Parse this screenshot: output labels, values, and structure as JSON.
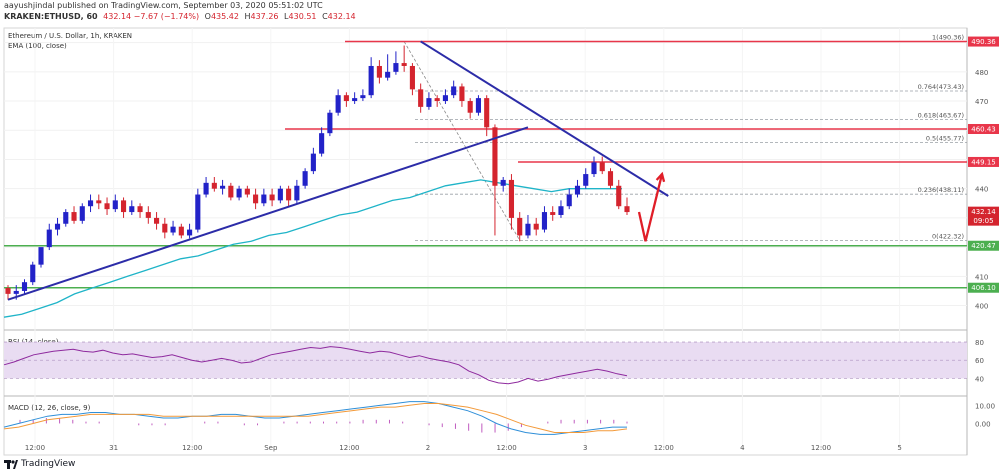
{
  "header": {
    "line1": "aayushjindal published on TradingView.com, September 03, 2020 05:51:02 UTC",
    "symbol": "KRAKEN:ETHUSD, 60",
    "quote": "432.14 −7.67 (−1.74%)",
    "o": "435.42",
    "h": "437.26",
    "l": "430.51",
    "c": "432.14"
  },
  "legend": {
    "instrument": "Ethereum / U.S. Dollar, 1h, KRAKEN",
    "ema": "EMA (100, close)",
    "rsi": "RSI (14, close)",
    "macd": "MACD (12, 26, close, 9)"
  },
  "brand": "TradingView",
  "colors": {
    "up": "#2222c8",
    "down": "#d4242e",
    "ema": "#1fb4c8",
    "resistance": "#e8364a",
    "support": "#4caf50",
    "trend": "#2c2ca8",
    "fib": "#9aa0a6",
    "arrow": "#e01e28",
    "rsi": "#8e2a9e",
    "rsi_band": "#e9dcf2",
    "macd": "#2f8fd8",
    "signal": "#f39a3a"
  },
  "chart_data": {
    "type": "candlestick",
    "y_range": [
      393,
      495
    ],
    "price_axis_ticks": [
      400,
      410,
      420,
      430,
      440,
      450,
      460,
      470,
      480,
      490
    ],
    "time_axis_labels": [
      "12:00",
      "31",
      "12:00",
      "Sep",
      "12:00",
      "2",
      "12:00",
      "3",
      "12:00",
      "4",
      "12:00",
      "5"
    ],
    "candles": [
      [
        406,
        404,
        407,
        402
      ],
      [
        404,
        405,
        407,
        402
      ],
      [
        405,
        408,
        409,
        404
      ],
      [
        408,
        414,
        415,
        407
      ],
      [
        414,
        420,
        416,
        413
      ],
      [
        420,
        426,
        428,
        419
      ],
      [
        426,
        428,
        430,
        424
      ],
      [
        428,
        432,
        433,
        427
      ],
      [
        432,
        429,
        434,
        428
      ],
      [
        429,
        434,
        435,
        428
      ],
      [
        434,
        436,
        438,
        432
      ],
      [
        436,
        435,
        438,
        433
      ],
      [
        435,
        433,
        437,
        431
      ],
      [
        433,
        436,
        438,
        432
      ],
      [
        436,
        432,
        437,
        430
      ],
      [
        432,
        434,
        436,
        431
      ],
      [
        434,
        432,
        435,
        430
      ],
      [
        432,
        430,
        434,
        428
      ],
      [
        430,
        428,
        432,
        426
      ],
      [
        428,
        425,
        430,
        423
      ],
      [
        425,
        427,
        429,
        424
      ],
      [
        427,
        424,
        428,
        423
      ],
      [
        424,
        426,
        428,
        423
      ],
      [
        426,
        438,
        440,
        425
      ],
      [
        438,
        442,
        444,
        437
      ],
      [
        442,
        440,
        444,
        439
      ],
      [
        440,
        441,
        443,
        438
      ],
      [
        441,
        437,
        442,
        436
      ],
      [
        437,
        440,
        441,
        436
      ],
      [
        440,
        438,
        441,
        437
      ],
      [
        438,
        435,
        440,
        433
      ],
      [
        435,
        438,
        440,
        434
      ],
      [
        438,
        436,
        440,
        434
      ],
      [
        436,
        440,
        441,
        435
      ],
      [
        440,
        436,
        441,
        434
      ],
      [
        436,
        441,
        443,
        435
      ],
      [
        441,
        446,
        447,
        440
      ],
      [
        446,
        452,
        454,
        445
      ],
      [
        452,
        459,
        461,
        451
      ],
      [
        459,
        466,
        467,
        458
      ],
      [
        466,
        472,
        474,
        465
      ],
      [
        472,
        470,
        473,
        468
      ],
      [
        470,
        471,
        473,
        469
      ],
      [
        471,
        472,
        474,
        470
      ],
      [
        472,
        482,
        485,
        471
      ],
      [
        482,
        478,
        484,
        476
      ],
      [
        478,
        480,
        486,
        477
      ],
      [
        480,
        483,
        487,
        479
      ],
      [
        483,
        482,
        489,
        480
      ],
      [
        482,
        474,
        483,
        472
      ],
      [
        474,
        468,
        476,
        466
      ],
      [
        468,
        471,
        473,
        467
      ],
      [
        471,
        470,
        472,
        468
      ],
      [
        470,
        472,
        474,
        469
      ],
      [
        472,
        475,
        477,
        471
      ],
      [
        475,
        470,
        476,
        468
      ],
      [
        470,
        466,
        471,
        464
      ],
      [
        466,
        471,
        472,
        465
      ],
      [
        471,
        461,
        472,
        458
      ],
      [
        461,
        441,
        462,
        424
      ],
      [
        441,
        443,
        444,
        439
      ],
      [
        443,
        430,
        445,
        426
      ],
      [
        430,
        424,
        432,
        422
      ],
      [
        424,
        428,
        431,
        423
      ],
      [
        428,
        426,
        430,
        424
      ],
      [
        426,
        432,
        434,
        425
      ],
      [
        432,
        431,
        434,
        429
      ],
      [
        431,
        434,
        436,
        430
      ],
      [
        434,
        438,
        440,
        433
      ],
      [
        438,
        441,
        443,
        437
      ],
      [
        441,
        445,
        447,
        440
      ],
      [
        445,
        449,
        451,
        444
      ],
      [
        449,
        446,
        451,
        445
      ],
      [
        446,
        441,
        447,
        440
      ],
      [
        441,
        434,
        443,
        433
      ],
      [
        434,
        432,
        437,
        431
      ]
    ],
    "ema_100": [
      396,
      397,
      399,
      401,
      404,
      406,
      408,
      410,
      412,
      414,
      416,
      417,
      419,
      421,
      422,
      424,
      425,
      427,
      429,
      431,
      432,
      434,
      436,
      437,
      439,
      441,
      442,
      443,
      442,
      441,
      440,
      439,
      440,
      440,
      440,
      440
    ],
    "horizontal_levels": [
      {
        "price": 490.36,
        "label": "490.36",
        "type": "resistance"
      },
      {
        "price": 460.43,
        "label": "460.43",
        "type": "resistance"
      },
      {
        "price": 449.15,
        "label": "449.15",
        "type": "resistance"
      },
      {
        "price": 420.47,
        "label": "420.47",
        "type": "support"
      },
      {
        "price": 406.1,
        "label": "406.10",
        "type": "support"
      }
    ],
    "fibonacci": [
      {
        "price": 490.36,
        "label": "1(490.36)"
      },
      {
        "price": 473.43,
        "label": "0.764(473.43)"
      },
      {
        "price": 463.67,
        "label": "0.618(463.67)"
      },
      {
        "price": 455.77,
        "label": "0.5(455.77)"
      },
      {
        "price": 438.11,
        "label": "0.236(438.11)"
      },
      {
        "price": 422.32,
        "label": "0(422.32)"
      }
    ],
    "price_tags": [
      {
        "price": 432.14,
        "label": "432.14",
        "sub": "09:05"
      }
    ],
    "rsi_ticks": [
      40,
      60,
      80
    ],
    "rsi_range": [
      25,
      90
    ],
    "rsi": [
      55,
      58,
      62,
      66,
      68,
      70,
      71,
      72,
      70,
      69,
      71,
      68,
      66,
      67,
      65,
      63,
      64,
      66,
      63,
      60,
      58,
      60,
      62,
      60,
      57,
      58,
      62,
      66,
      68,
      70,
      72,
      74,
      73,
      75,
      74,
      72,
      70,
      68,
      70,
      69,
      66,
      63,
      65,
      62,
      60,
      58,
      55,
      48,
      44,
      38,
      35,
      34,
      36,
      40,
      37,
      39,
      42,
      44,
      46,
      48,
      50,
      48,
      45,
      43
    ],
    "macd_ticks": [
      10,
      0
    ],
    "macd_range": [
      -8,
      14
    ],
    "macd": [
      -2,
      0,
      2,
      4,
      5,
      5,
      6,
      6,
      5,
      5,
      4,
      3,
      3,
      4,
      4,
      5,
      5,
      4,
      3,
      3,
      4,
      5,
      6,
      7,
      8,
      9,
      10,
      11,
      12,
      12,
      11,
      9,
      7,
      4,
      0,
      -3,
      -5,
      -6,
      -6,
      -5,
      -4,
      -3,
      -2,
      -2
    ],
    "signal": [
      -3,
      -2,
      0,
      2,
      3,
      4,
      5,
      5,
      5,
      5,
      5,
      4,
      4,
      4,
      4,
      4,
      4,
      4,
      4,
      4,
      4,
      4,
      5,
      6,
      7,
      8,
      9,
      9,
      10,
      11,
      11,
      10,
      9,
      7,
      5,
      2,
      -1,
      -3,
      -5,
      -5,
      -5,
      -4,
      -4,
      -3
    ],
    "histogram": [
      2,
      2,
      3,
      3,
      2,
      1,
      1,
      0,
      0,
      -1,
      -1,
      -1,
      0,
      0,
      1,
      1,
      0,
      -1,
      -1,
      0,
      1,
      1,
      1,
      1,
      1,
      1,
      2,
      2,
      2,
      1,
      0,
      -1,
      -2,
      -3,
      -4,
      -5,
      -5,
      -4,
      -2,
      0,
      1,
      2,
      2,
      2,
      2,
      2,
      1
    ]
  }
}
